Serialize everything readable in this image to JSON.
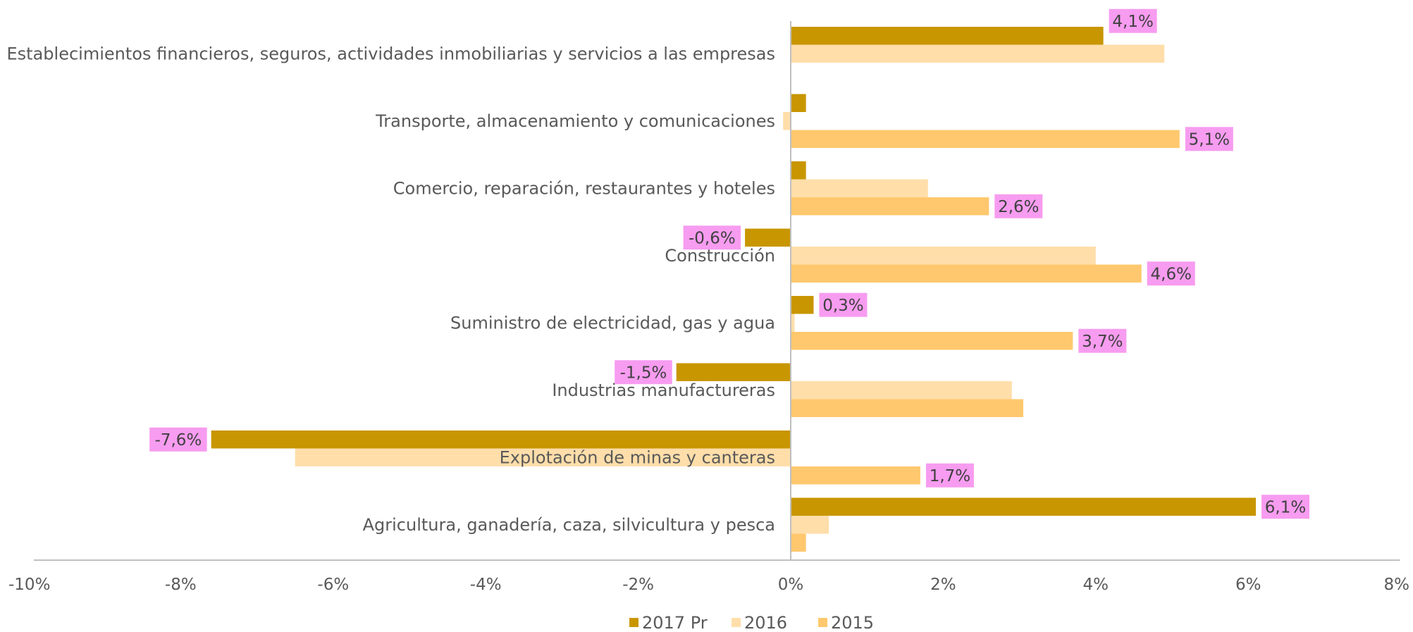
{
  "colors": {
    "series_2017": "#c89600",
    "series_2016": "#ffdeaa",
    "series_2015": "#ffc86e",
    "label_bg": "#f79cf0",
    "axis": "#bfbfbf",
    "text": "#595959"
  },
  "chart_data": {
    "type": "bar",
    "orientation": "horizontal",
    "categories": [
      "Establecimientos financieros, seguros, actividades inmobiliarias y servicios a las empresas",
      "Transporte, almacenamiento y comunicaciones",
      "Comercio, reparación, restaurantes y hoteles",
      "Construcción",
      "Suministro de electricidad, gas y agua",
      "Industrias manufactureras",
      "Explotación de minas y canteras",
      "Agricultura, ganadería, caza, silvicultura y pesca"
    ],
    "series": [
      {
        "name": "2017 Pr",
        "color": "#c89600",
        "values": [
          4.1,
          0.2,
          0.2,
          -0.6,
          0.3,
          -1.5,
          -7.6,
          6.1
        ],
        "labels": [
          "4,1%",
          null,
          null,
          "-0,6%",
          "0,3%",
          "-1,5%",
          "-7,6%",
          "6,1%"
        ]
      },
      {
        "name": "2016",
        "color": "#ffdeaa",
        "values": [
          4.9,
          -0.1,
          1.8,
          4.0,
          0.05,
          2.9,
          -6.5,
          0.5
        ],
        "labels": [
          null,
          null,
          null,
          null,
          null,
          null,
          null,
          null
        ]
      },
      {
        "name": "2015",
        "color": "#ffc86e",
        "values": [
          null,
          5.1,
          2.6,
          4.6,
          3.7,
          3.05,
          1.7,
          0.2
        ],
        "labels": [
          null,
          "5,1%",
          "2,6%",
          "4,6%",
          "3,7%",
          null,
          "1,7%",
          null
        ]
      }
    ],
    "xlim": [
      -10,
      8
    ],
    "x_ticks": [
      -10,
      -8,
      -6,
      -4,
      -2,
      0,
      2,
      4,
      6,
      8
    ],
    "x_tick_labels": [
      "-10%",
      "-8%",
      "-6%",
      "-4%",
      "-2%",
      "0%",
      "2%",
      "4%",
      "6%",
      "8%"
    ],
    "grid": false,
    "legend_position": "bottom",
    "title": "",
    "xlabel": "",
    "ylabel": ""
  }
}
